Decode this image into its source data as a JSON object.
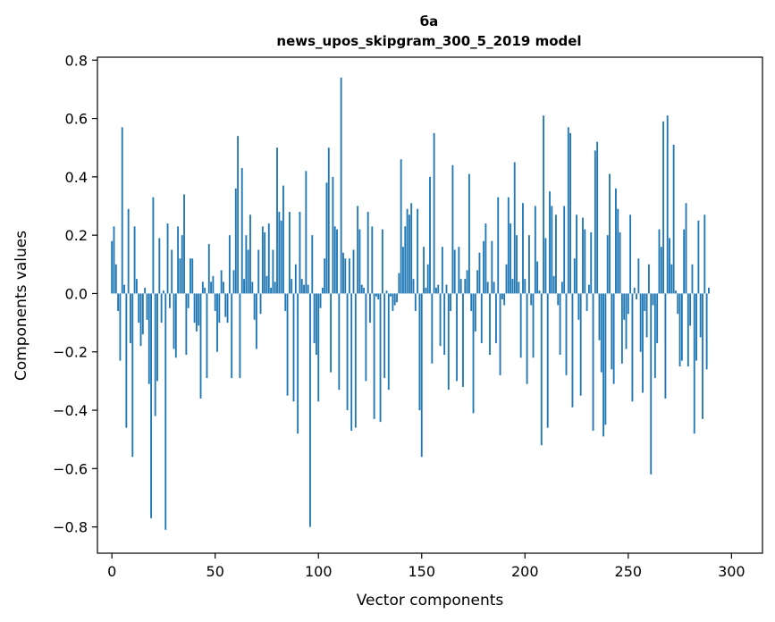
{
  "chart_data": {
    "type": "bar",
    "title": "ба",
    "subtitle": "news_upos_skipgram_300_5_2019 model",
    "xlabel": "Vector components",
    "ylabel": "Components values",
    "xlim": [
      -7,
      315
    ],
    "ylim": [
      -0.89,
      0.81
    ],
    "x_ticks": [
      0,
      50,
      100,
      150,
      200,
      250,
      300
    ],
    "y_ticks": [
      -0.8,
      -0.6,
      -0.4,
      -0.2,
      0.0,
      0.2,
      0.4,
      0.6,
      0.8
    ],
    "grid": false,
    "bar_color": "#1f77b4",
    "values": [
      0.18,
      0.23,
      0.1,
      -0.06,
      -0.23,
      0.57,
      0.03,
      -0.46,
      0.29,
      -0.17,
      -0.56,
      0.23,
      0.05,
      -0.1,
      -0.18,
      -0.14,
      0.02,
      -0.09,
      -0.31,
      -0.77,
      0.33,
      -0.42,
      -0.3,
      0.19,
      -0.1,
      0.01,
      -0.81,
      0.24,
      -0.05,
      0.15,
      -0.19,
      -0.22,
      0.23,
      0.12,
      0.2,
      0.34,
      -0.21,
      -0.05,
      0.12,
      0.12,
      -0.1,
      -0.13,
      -0.11,
      -0.36,
      0.04,
      0.02,
      -0.29,
      0.17,
      0.04,
      0.06,
      -0.06,
      -0.2,
      -0.1,
      0.08,
      0.04,
      -0.08,
      -0.1,
      0.2,
      -0.29,
      0.08,
      0.36,
      0.54,
      -0.29,
      0.43,
      0.05,
      0.2,
      0.15,
      0.27,
      0.04,
      -0.09,
      -0.19,
      0.15,
      -0.07,
      0.23,
      0.21,
      0.06,
      0.24,
      0.02,
      0.15,
      0.04,
      0.5,
      0.28,
      0.25,
      0.37,
      -0.06,
      -0.35,
      0.28,
      0.05,
      -0.37,
      0.1,
      -0.48,
      0.28,
      0.05,
      0.03,
      0.42,
      0.03,
      -0.8,
      0.2,
      -0.17,
      -0.21,
      -0.37,
      -0.05,
      0.02,
      0.12,
      0.38,
      0.5,
      -0.27,
      0.4,
      0.23,
      0.22,
      -0.33,
      0.74,
      0.14,
      0.12,
      -0.4,
      0.12,
      -0.47,
      0.15,
      -0.46,
      0.3,
      0.22,
      0.03,
      0.02,
      -0.3,
      0.28,
      -0.1,
      0.23,
      -0.43,
      -0.01,
      -0.02,
      -0.44,
      0.22,
      -0.29,
      0.01,
      -0.33,
      -0.01,
      -0.06,
      -0.04,
      -0.03,
      0.07,
      0.46,
      0.16,
      0.23,
      0.29,
      0.27,
      0.31,
      0.05,
      -0.06,
      0.29,
      -0.4,
      -0.56,
      0.16,
      0.02,
      0.1,
      0.4,
      -0.24,
      0.55,
      0.02,
      0.03,
      -0.18,
      0.16,
      -0.21,
      0.03,
      -0.33,
      -0.06,
      0.44,
      0.15,
      -0.3,
      0.16,
      0.05,
      -0.32,
      0.05,
      0.08,
      0.41,
      -0.06,
      -0.41,
      -0.13,
      0.08,
      0.14,
      -0.17,
      0.18,
      0.24,
      0.04,
      -0.21,
      0.18,
      0.04,
      -0.17,
      0.33,
      -0.28,
      -0.02,
      -0.04,
      0.1,
      0.33,
      0.24,
      0.05,
      0.45,
      0.2,
      0.04,
      -0.22,
      0.31,
      0.05,
      -0.31,
      0.2,
      -0.04,
      -0.22,
      0.3,
      0.11,
      0.01,
      -0.52,
      0.61,
      0.19,
      -0.46,
      0.35,
      0.3,
      0.06,
      0.27,
      -0.04,
      -0.21,
      0.04,
      0.3,
      -0.28,
      0.57,
      0.55,
      -0.39,
      0.12,
      0.27,
      -0.09,
      -0.35,
      0.26,
      0.22,
      -0.06,
      0.03,
      0.21,
      -0.47,
      0.49,
      0.52,
      -0.16,
      -0.27,
      -0.49,
      -0.45,
      0.2,
      0.41,
      -0.26,
      -0.31,
      0.36,
      0.29,
      0.21,
      -0.24,
      -0.09,
      -0.19,
      -0.07,
      0.27,
      -0.37,
      0.02,
      -0.02,
      0.12,
      -0.2,
      -0.34,
      -0.06,
      -0.15,
      0.1,
      -0.62,
      -0.04,
      -0.29,
      -0.17,
      0.22,
      0.16,
      0.59,
      -0.36,
      0.61,
      0.19,
      0.1,
      0.51,
      0.01,
      -0.07,
      -0.25,
      -0.23,
      0.22,
      0.31,
      -0.25,
      -0.11,
      0.1,
      -0.48,
      -0.23,
      0.25,
      -0.15,
      -0.43,
      0.27,
      -0.26,
      0.02
    ]
  }
}
